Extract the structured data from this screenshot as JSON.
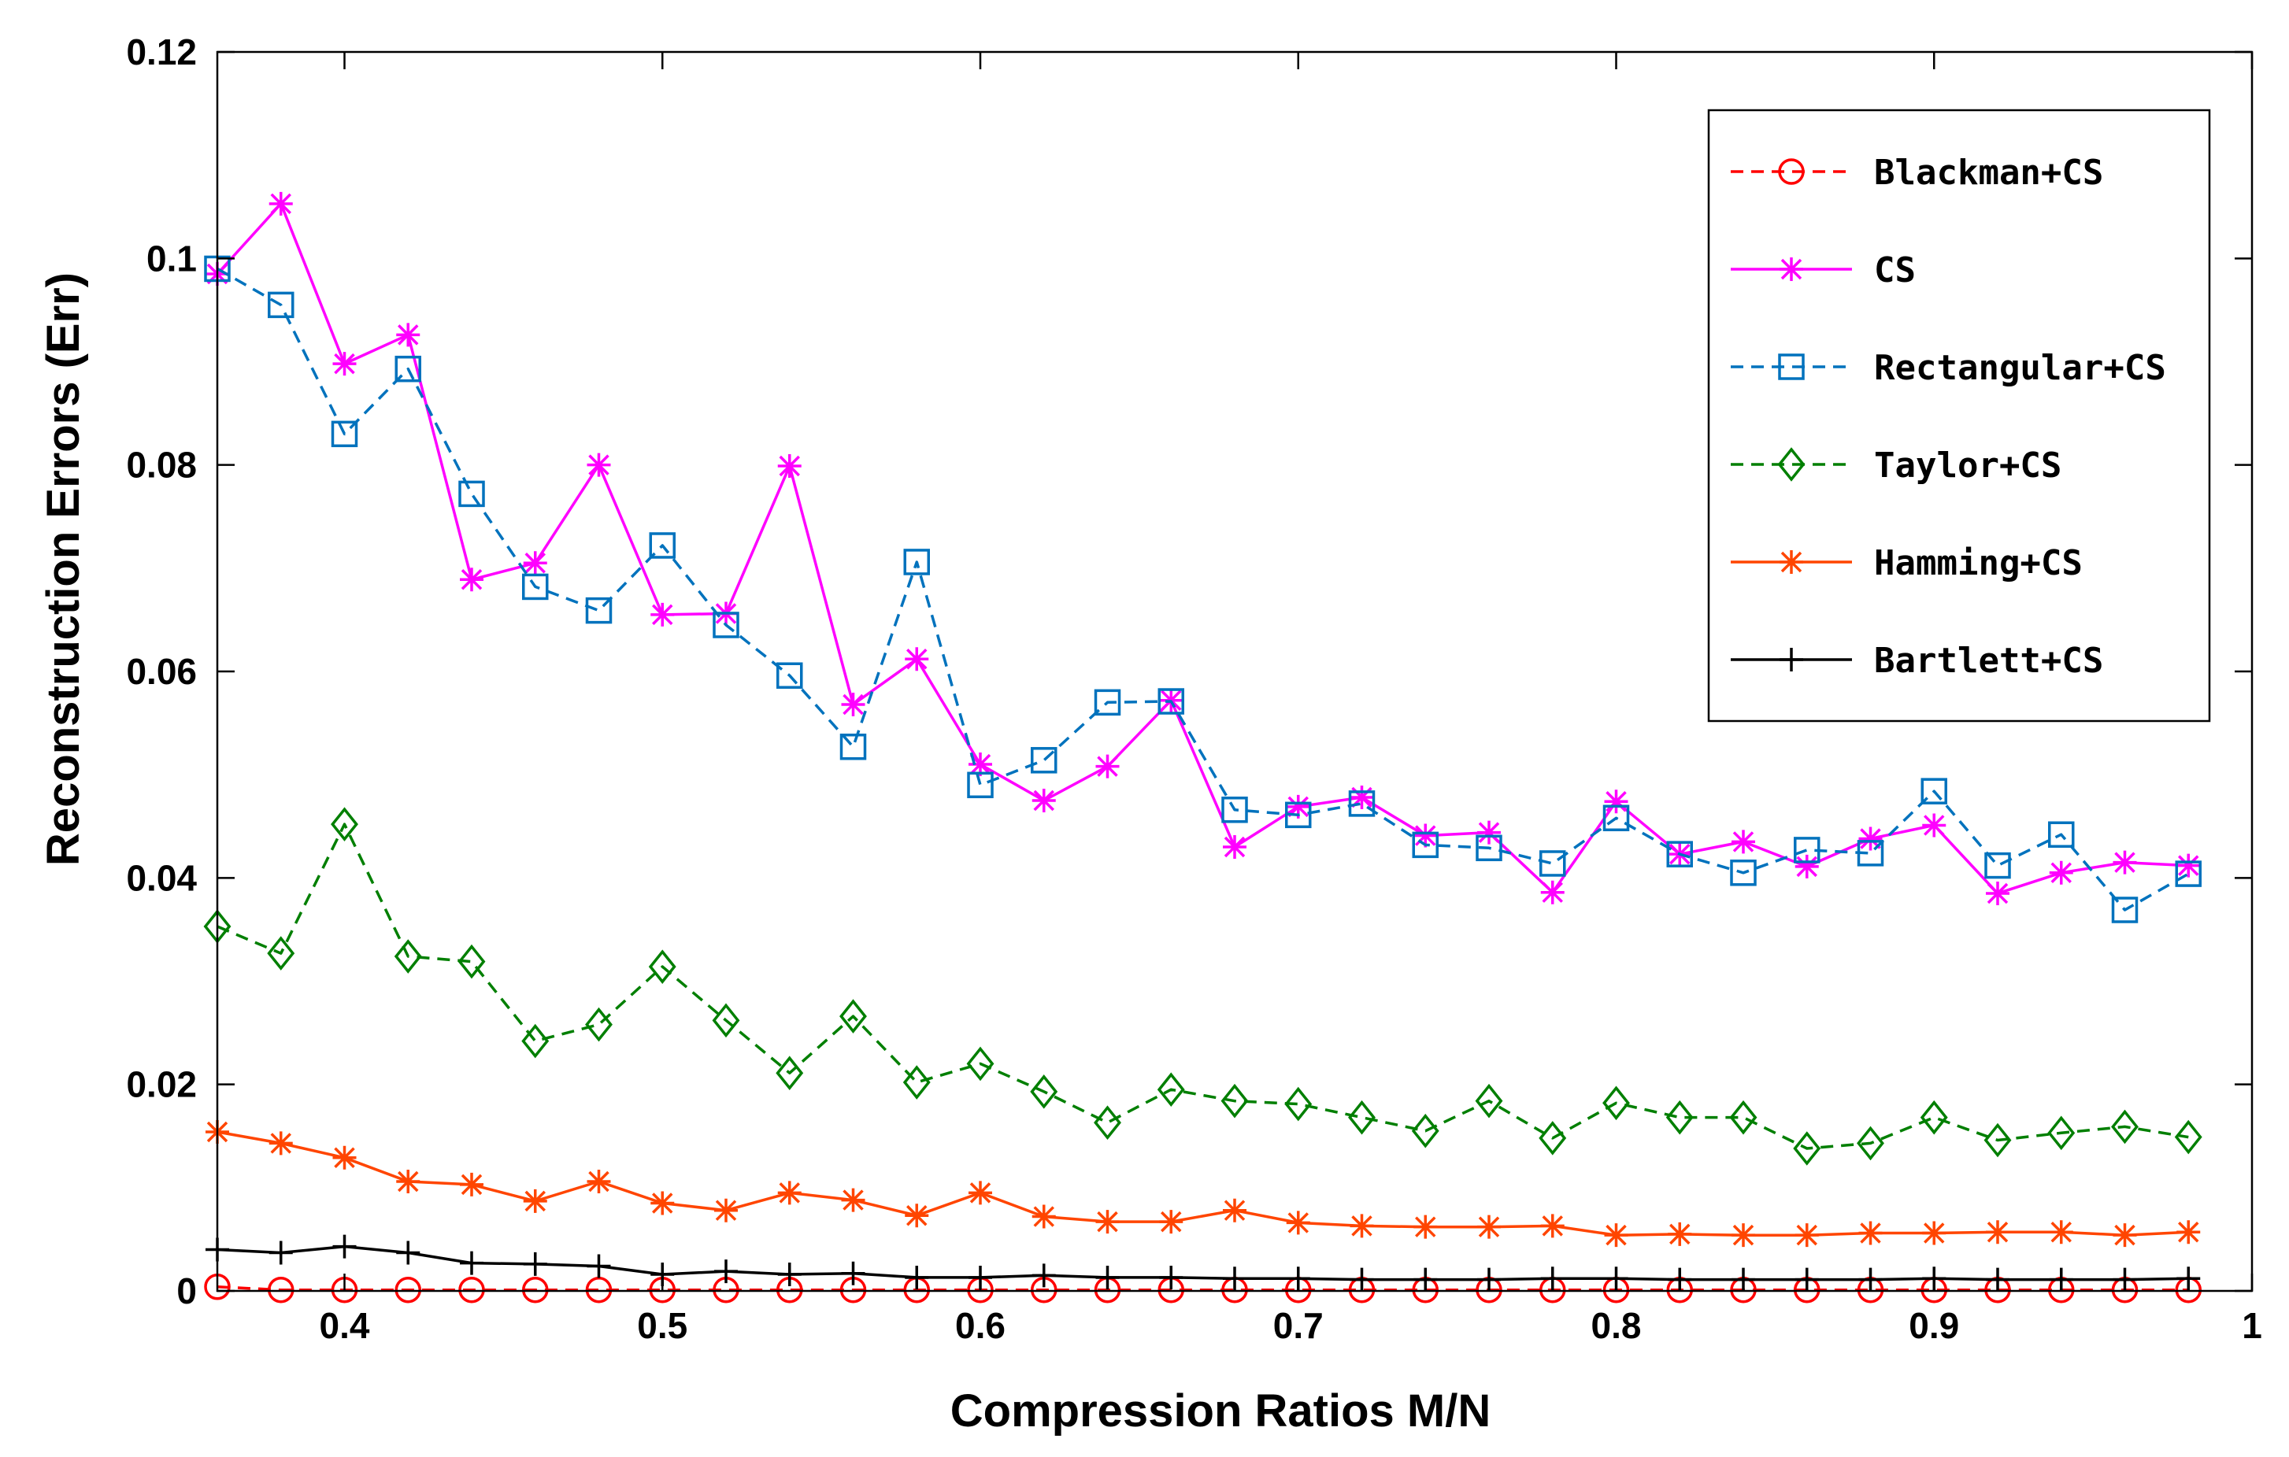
{
  "chart_data": {
    "type": "line",
    "title": "",
    "xlabel": "Compression Ratios M/N",
    "ylabel": "Reconstruction Errors (Err)",
    "xlim": [
      0.36,
      1.0
    ],
    "ylim": [
      0,
      0.12
    ],
    "xticks": [
      "0.4",
      "0.5",
      "0.6",
      "0.7",
      "0.8",
      "0.9",
      "1"
    ],
    "yticks": [
      "0",
      "0.02",
      "0.04",
      "0.06",
      "0.08",
      "0.1",
      "0.12"
    ],
    "grid": false,
    "legend_position": "top-right",
    "x": [
      0.36,
      0.38,
      0.4,
      0.42,
      0.44,
      0.46,
      0.48,
      0.5,
      0.52,
      0.54,
      0.56,
      0.58,
      0.6,
      0.62,
      0.64,
      0.66,
      0.68,
      0.7,
      0.72,
      0.74,
      0.76,
      0.78,
      0.8,
      0.82,
      0.84,
      0.86,
      0.88,
      0.9,
      0.92,
      0.94,
      0.96,
      0.98
    ],
    "series": [
      {
        "name": "Blackman+CS",
        "color": "#ff0000",
        "dash": "dashed",
        "marker": "circle",
        "values": [
          0.0004,
          0.0001,
          0.0001,
          0.0001,
          0.0001,
          0.0001,
          0.0001,
          0.0001,
          0.0001,
          0.0001,
          0.0001,
          0.0001,
          0.0001,
          0.0001,
          0.0001,
          0.0001,
          0.0001,
          0.0001,
          0.0001,
          0.0001,
          0.0001,
          0.0001,
          0.0001,
          0.0001,
          0.0001,
          0.0001,
          0.0001,
          0.0001,
          0.0001,
          0.0001,
          0.0001,
          0.0001
        ]
      },
      {
        "name": "CS",
        "color": "#ff00ff",
        "dash": "solid",
        "marker": "asterisk",
        "values": [
          0.0985,
          0.1053,
          0.0898,
          0.0926,
          0.0689,
          0.0705,
          0.08,
          0.0655,
          0.0656,
          0.0799,
          0.0568,
          0.0612,
          0.051,
          0.0475,
          0.0508,
          0.0572,
          0.043,
          0.0469,
          0.0478,
          0.0441,
          0.0444,
          0.0386,
          0.0474,
          0.0423,
          0.0435,
          0.0411,
          0.0438,
          0.0451,
          0.0385,
          0.0405,
          0.0415,
          0.0412
        ]
      },
      {
        "name": "Rectangular+CS",
        "color": "#0072bd",
        "dash": "dashed",
        "marker": "square",
        "values": [
          0.099,
          0.0955,
          0.083,
          0.0893,
          0.0772,
          0.0682,
          0.0659,
          0.0722,
          0.0645,
          0.0596,
          0.0527,
          0.0706,
          0.049,
          0.0514,
          0.057,
          0.0571,
          0.0466,
          0.0461,
          0.0472,
          0.0432,
          0.0429,
          0.0414,
          0.0458,
          0.0423,
          0.0405,
          0.0427,
          0.0424,
          0.0484,
          0.0412,
          0.0442,
          0.0369,
          0.0404
        ]
      },
      {
        "name": "Taylor+CS",
        "color": "#007f00",
        "dash": "dashed",
        "marker": "diamond",
        "values": [
          0.0353,
          0.0327,
          0.0452,
          0.0324,
          0.0319,
          0.0242,
          0.0258,
          0.0314,
          0.0262,
          0.0211,
          0.0266,
          0.0202,
          0.022,
          0.0193,
          0.0163,
          0.0195,
          0.0184,
          0.0181,
          0.0168,
          0.0155,
          0.0184,
          0.0148,
          0.0182,
          0.0168,
          0.0168,
          0.0138,
          0.0143,
          0.0168,
          0.0146,
          0.0153,
          0.0159,
          0.0149
        ]
      },
      {
        "name": "Hamming+CS",
        "color": "#ff4500",
        "dash": "solid",
        "marker": "asterisk",
        "values": [
          0.0154,
          0.0143,
          0.0129,
          0.0106,
          0.0103,
          0.0087,
          0.0106,
          0.0085,
          0.0078,
          0.0095,
          0.0088,
          0.0073,
          0.0095,
          0.0072,
          0.0067,
          0.0067,
          0.0078,
          0.0066,
          0.0063,
          0.0062,
          0.0062,
          0.0063,
          0.0054,
          0.0055,
          0.0054,
          0.0054,
          0.0056,
          0.0056,
          0.0057,
          0.0057,
          0.0054,
          0.0057
        ]
      },
      {
        "name": "Bartlett+CS",
        "color": "#000000",
        "dash": "solid",
        "marker": "plus",
        "values": [
          0.004,
          0.0037,
          0.0043,
          0.0037,
          0.0027,
          0.0026,
          0.0024,
          0.0016,
          0.0019,
          0.0016,
          0.0017,
          0.0013,
          0.0013,
          0.0015,
          0.0013,
          0.0013,
          0.0012,
          0.0012,
          0.0011,
          0.0011,
          0.0011,
          0.0012,
          0.0012,
          0.0011,
          0.0011,
          0.0011,
          0.0011,
          0.0012,
          0.0011,
          0.0011,
          0.0011,
          0.0012
        ]
      }
    ]
  }
}
